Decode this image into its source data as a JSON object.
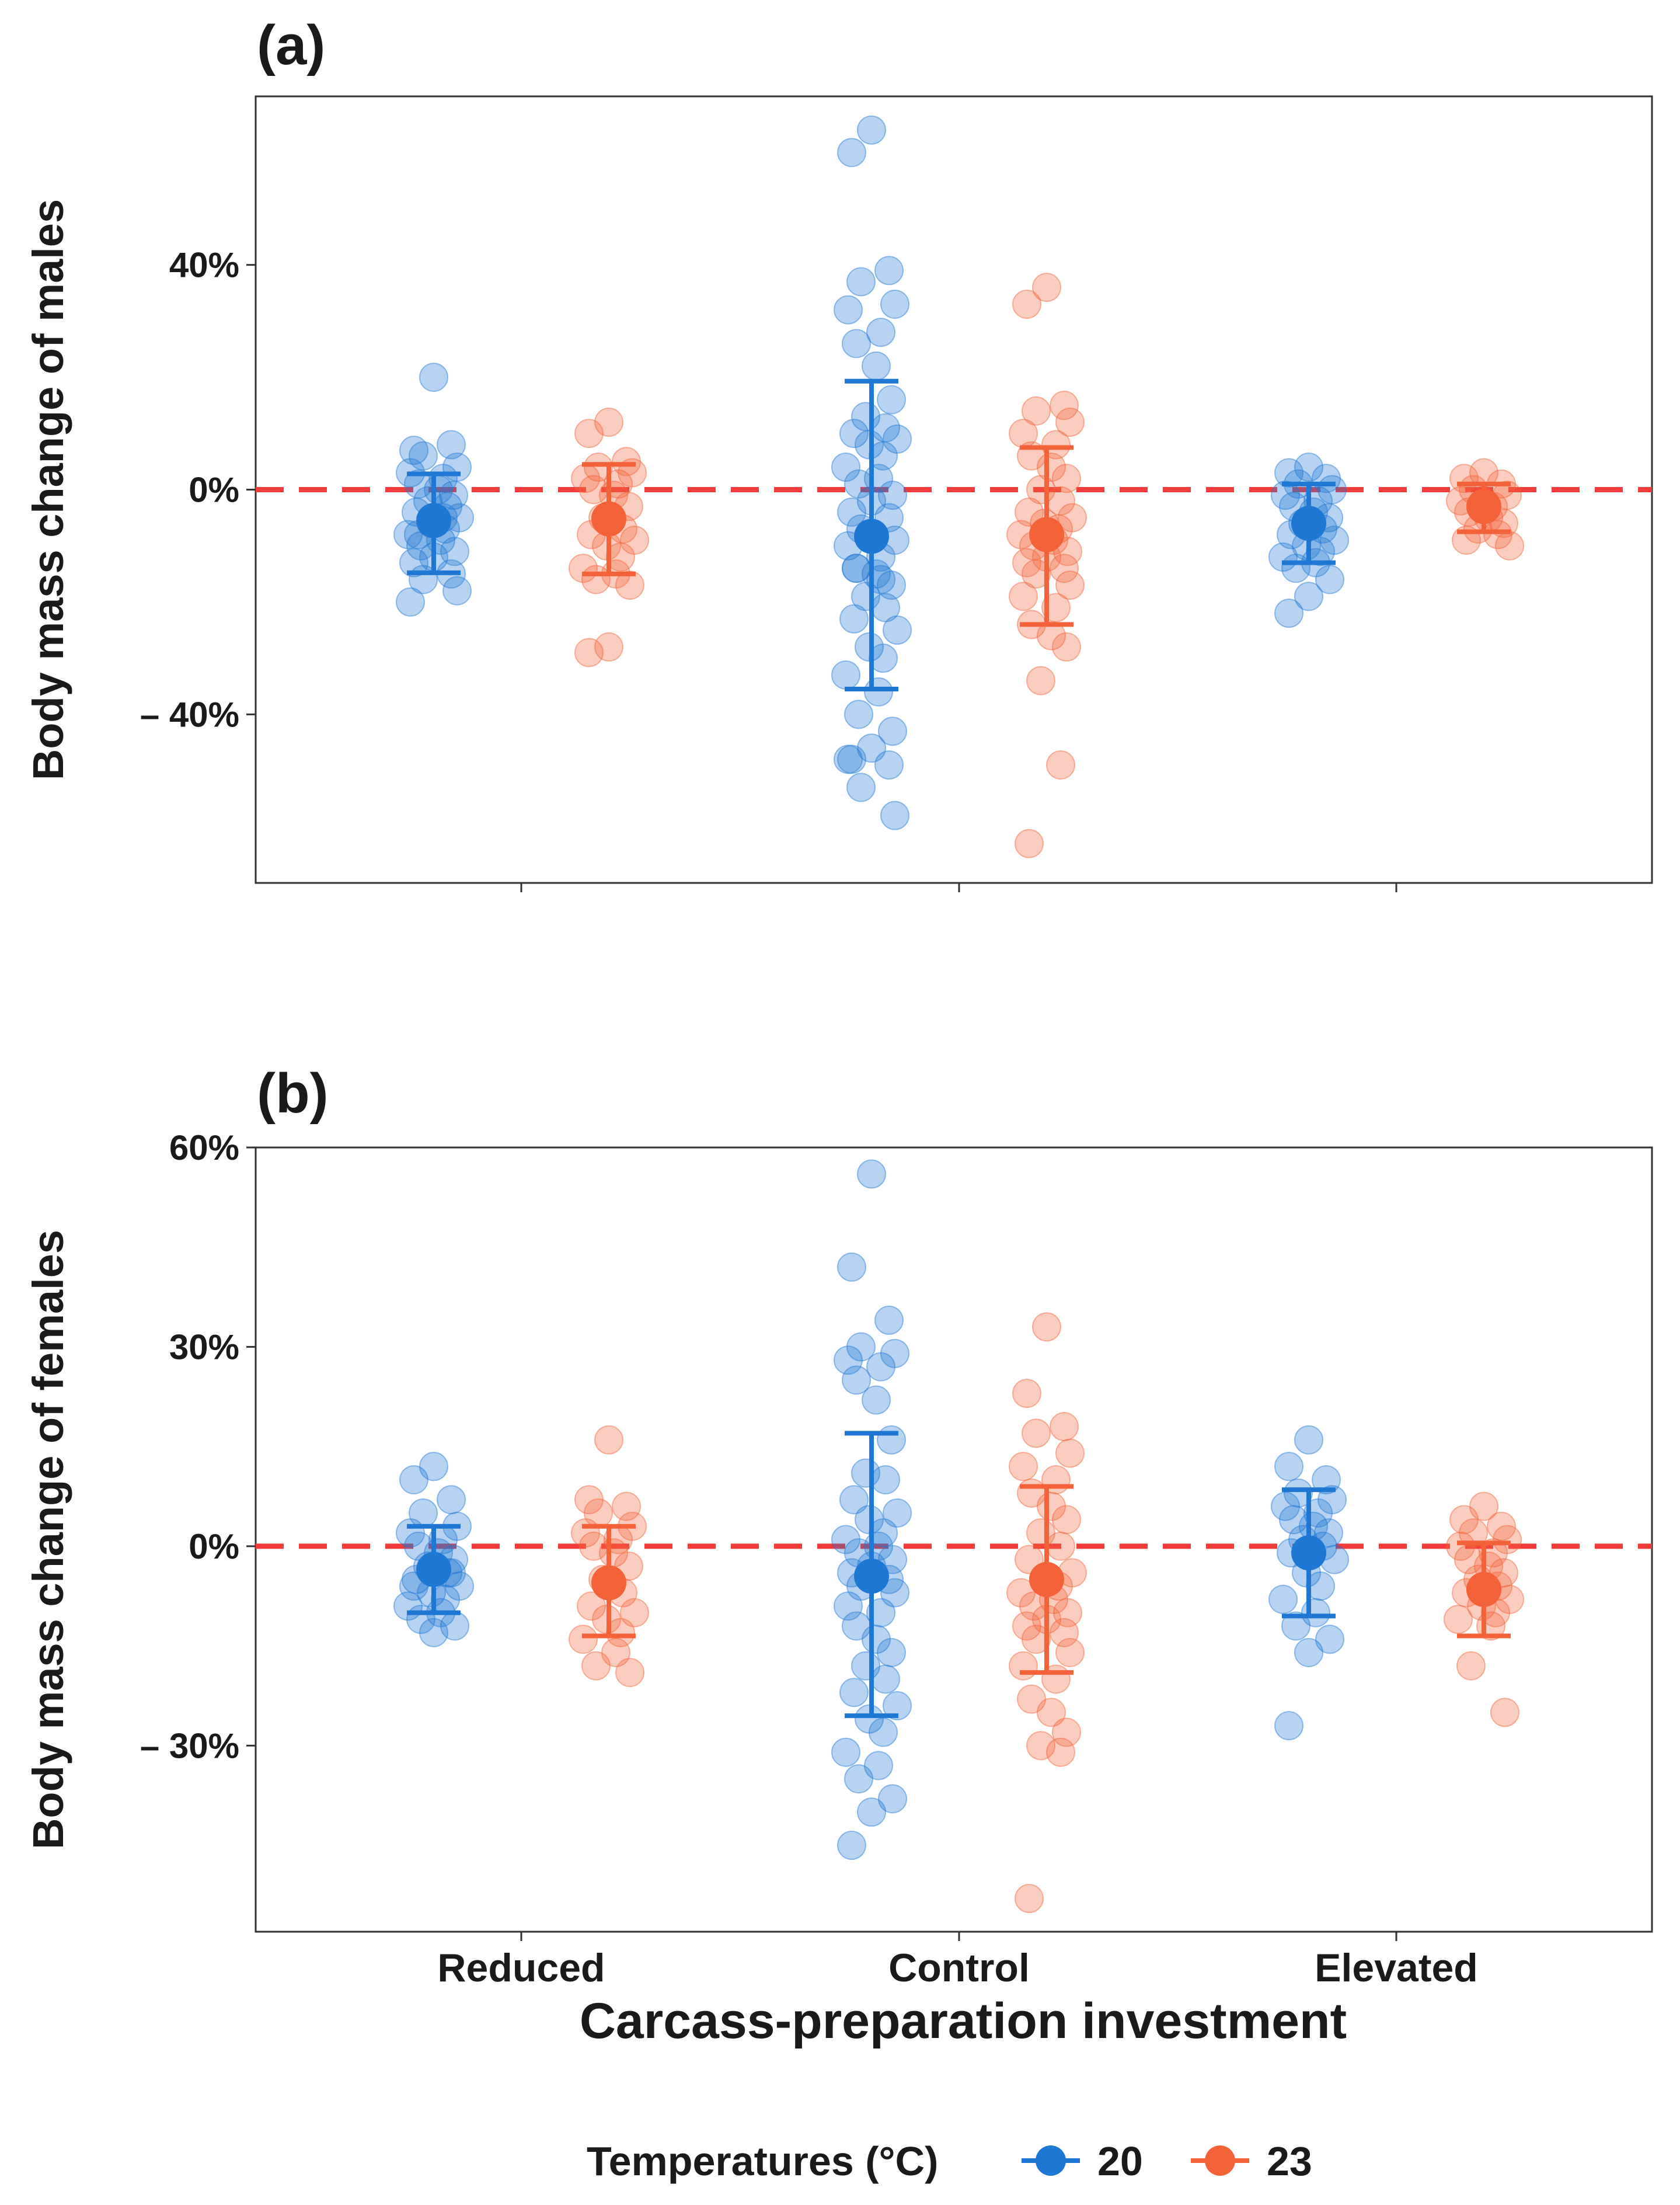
{
  "figure": {
    "xlabel": "Carcass-preparation investment",
    "legend": {
      "title": "Temperatures (°C)",
      "placement": "bottom"
    }
  },
  "colors": {
    "t20": "#1f77d4",
    "t23": "#f4623a",
    "reference_line": "#f43b3b",
    "frame": "#333333"
  },
  "chart_data": [
    {
      "type": "scatter",
      "panel": "(a)",
      "ylabel": "Body mass change of males",
      "ylim": [
        -0.7,
        0.7
      ],
      "yticks": [
        -0.4,
        0,
        0.4
      ],
      "ytick_labels": [
        "– 40%",
        "0%",
        "40%"
      ],
      "categories": [
        "Reduced",
        "Control",
        "Elevated"
      ],
      "show_x_tick_labels": false,
      "reference_line": 0,
      "series": [
        {
          "name": "20",
          "summary": [
            {
              "category": "Reduced",
              "mean": -0.055,
              "lower": -0.148,
              "upper": 0.028
            },
            {
              "category": "Control",
              "mean": -0.083,
              "lower": -0.355,
              "upper": 0.193
            },
            {
              "category": "Elevated",
              "mean": -0.06,
              "lower": -0.13,
              "upper": 0.01
            }
          ],
          "points": [
            {
              "category": "Reduced",
              "values": [
                0.2,
                0.07,
                0.08,
                0.06,
                0.04,
                0.03,
                0.02,
                0.01,
                0.0,
                -0.01,
                -0.02,
                -0.03,
                -0.04,
                -0.05,
                -0.06,
                -0.07,
                -0.08,
                -0.09,
                -0.1,
                -0.11,
                -0.12,
                -0.13,
                -0.15,
                -0.16,
                -0.18,
                -0.2,
                -0.05,
                -0.08
              ]
            },
            {
              "category": "Control",
              "values": [
                0.64,
                0.6,
                0.39,
                0.37,
                0.33,
                0.32,
                0.28,
                0.26,
                0.22,
                0.16,
                0.13,
                0.11,
                0.1,
                0.09,
                0.08,
                0.06,
                0.04,
                0.02,
                0.01,
                -0.01,
                -0.02,
                -0.04,
                -0.05,
                -0.07,
                -0.09,
                -0.1,
                -0.12,
                -0.14,
                -0.15,
                -0.17,
                -0.19,
                -0.21,
                -0.23,
                -0.25,
                -0.28,
                -0.3,
                -0.33,
                -0.36,
                -0.4,
                -0.43,
                -0.46,
                -0.48,
                -0.49,
                -0.53,
                -0.58,
                -0.48,
                -0.16,
                -0.14
              ]
            },
            {
              "category": "Elevated",
              "values": [
                0.04,
                0.03,
                0.02,
                0.01,
                0.0,
                -0.01,
                -0.02,
                -0.03,
                -0.04,
                -0.05,
                -0.06,
                -0.07,
                -0.08,
                -0.09,
                -0.1,
                -0.11,
                -0.12,
                -0.13,
                -0.14,
                -0.16,
                -0.19,
                -0.22
              ]
            }
          ]
        },
        {
          "name": "23",
          "summary": [
            {
              "category": "Reduced",
              "mean": -0.052,
              "lower": -0.15,
              "upper": 0.045
            },
            {
              "category": "Control",
              "mean": -0.08,
              "lower": -0.24,
              "upper": 0.075
            },
            {
              "category": "Elevated",
              "mean": -0.03,
              "lower": -0.075,
              "upper": 0.01
            }
          ],
          "points": [
            {
              "category": "Reduced",
              "values": [
                0.12,
                0.1,
                0.05,
                0.04,
                0.03,
                0.02,
                0.01,
                0.0,
                -0.01,
                -0.03,
                -0.05,
                -0.07,
                -0.08,
                -0.09,
                -0.1,
                -0.12,
                -0.14,
                -0.15,
                -0.16,
                -0.17,
                -0.28,
                -0.29
              ]
            },
            {
              "category": "Control",
              "values": [
                0.36,
                0.33,
                0.15,
                0.14,
                0.12,
                0.1,
                0.08,
                0.06,
                0.04,
                0.02,
                0.0,
                -0.02,
                -0.04,
                -0.05,
                -0.06,
                -0.07,
                -0.08,
                -0.09,
                -0.1,
                -0.11,
                -0.12,
                -0.13,
                -0.14,
                -0.15,
                -0.17,
                -0.19,
                -0.21,
                -0.24,
                -0.26,
                -0.28,
                -0.34,
                -0.49,
                -0.63
              ]
            },
            {
              "category": "Elevated",
              "values": [
                0.03,
                0.02,
                0.01,
                0.0,
                -0.01,
                -0.02,
                -0.03,
                -0.04,
                -0.05,
                -0.06,
                -0.07,
                -0.08,
                -0.09,
                -0.1
              ]
            }
          ]
        }
      ]
    },
    {
      "type": "scatter",
      "panel": "(b)",
      "ylabel": "Body mass change of females",
      "ylim": [
        -0.58,
        0.6
      ],
      "yticks": [
        -0.3,
        0,
        0.3,
        0.6
      ],
      "ytick_labels": [
        "– 30%",
        "0%",
        "30%",
        "60%"
      ],
      "categories": [
        "Reduced",
        "Control",
        "Elevated"
      ],
      "show_x_tick_labels": true,
      "reference_line": 0,
      "series": [
        {
          "name": "20",
          "summary": [
            {
              "category": "Reduced",
              "mean": -0.035,
              "lower": -0.1,
              "upper": 0.03
            },
            {
              "category": "Control",
              "mean": -0.045,
              "lower": -0.255,
              "upper": 0.17
            },
            {
              "category": "Elevated",
              "mean": -0.01,
              "lower": -0.105,
              "upper": 0.085
            }
          ],
          "points": [
            {
              "category": "Reduced",
              "values": [
                0.12,
                0.1,
                0.07,
                0.05,
                0.03,
                0.02,
                0.01,
                0.0,
                -0.01,
                -0.02,
                -0.03,
                -0.04,
                -0.05,
                -0.06,
                -0.07,
                -0.08,
                -0.09,
                -0.1,
                -0.11,
                -0.12,
                -0.13,
                -0.06,
                -0.04
              ]
            },
            {
              "category": "Control",
              "values": [
                0.56,
                0.42,
                0.34,
                0.3,
                0.29,
                0.28,
                0.27,
                0.25,
                0.22,
                0.16,
                0.11,
                0.1,
                0.07,
                0.05,
                0.04,
                0.02,
                0.01,
                0.0,
                -0.01,
                -0.02,
                -0.03,
                -0.04,
                -0.05,
                -0.06,
                -0.07,
                -0.09,
                -0.1,
                -0.12,
                -0.14,
                -0.16,
                -0.18,
                -0.2,
                -0.22,
                -0.24,
                -0.26,
                -0.28,
                -0.31,
                -0.33,
                -0.35,
                -0.38,
                -0.4,
                -0.45
              ]
            },
            {
              "category": "Elevated",
              "values": [
                0.16,
                0.12,
                0.1,
                0.08,
                0.07,
                0.06,
                0.05,
                0.04,
                0.03,
                0.02,
                0.01,
                0.0,
                -0.01,
                -0.02,
                -0.04,
                -0.06,
                -0.08,
                -0.1,
                -0.12,
                -0.14,
                -0.16,
                -0.27
              ]
            }
          ]
        },
        {
          "name": "23",
          "summary": [
            {
              "category": "Reduced",
              "mean": -0.055,
              "lower": -0.135,
              "upper": 0.03
            },
            {
              "category": "Control",
              "mean": -0.05,
              "lower": -0.19,
              "upper": 0.09
            },
            {
              "category": "Elevated",
              "mean": -0.065,
              "lower": -0.135,
              "upper": 0.005
            }
          ],
          "points": [
            {
              "category": "Reduced",
              "values": [
                0.16,
                0.07,
                0.06,
                0.05,
                0.03,
                0.02,
                0.01,
                0.0,
                -0.01,
                -0.03,
                -0.05,
                -0.07,
                -0.09,
                -0.1,
                -0.11,
                -0.13,
                -0.14,
                -0.16,
                -0.18,
                -0.19
              ]
            },
            {
              "category": "Control",
              "values": [
                0.33,
                0.23,
                0.18,
                0.17,
                0.14,
                0.12,
                0.1,
                0.08,
                0.06,
                0.04,
                0.02,
                0.0,
                -0.02,
                -0.04,
                -0.05,
                -0.06,
                -0.07,
                -0.08,
                -0.09,
                -0.1,
                -0.11,
                -0.12,
                -0.13,
                -0.14,
                -0.16,
                -0.18,
                -0.2,
                -0.23,
                -0.25,
                -0.28,
                -0.3,
                -0.31,
                -0.53
              ]
            },
            {
              "category": "Elevated",
              "values": [
                0.06,
                0.04,
                0.03,
                0.02,
                0.01,
                0.0,
                -0.01,
                -0.02,
                -0.03,
                -0.04,
                -0.05,
                -0.06,
                -0.07,
                -0.08,
                -0.09,
                -0.1,
                -0.11,
                -0.12,
                -0.18,
                -0.25
              ]
            }
          ]
        }
      ]
    }
  ]
}
